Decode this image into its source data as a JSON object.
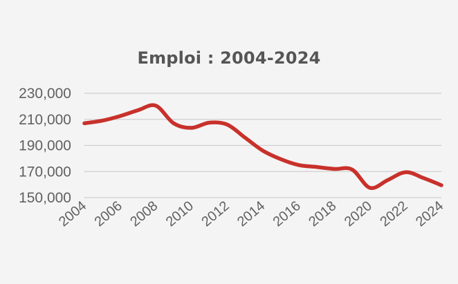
{
  "chart_data": {
    "type": "line",
    "title": "Emploi : 2004-2024",
    "xlabel": "",
    "ylabel": "",
    "x_ticks": [
      "2004",
      "2006",
      "2008",
      "2010",
      "2012",
      "2014",
      "2016",
      "2018",
      "2020",
      "2022",
      "2024"
    ],
    "y_ticks": [
      "150,000",
      "170,000",
      "190,000",
      "210,000",
      "230,000"
    ],
    "xlim": [
      2004,
      2024
    ],
    "ylim": [
      150000,
      230000
    ],
    "grid": true,
    "legend": "none",
    "series": [
      {
        "color": "#c8312b",
        "x": [
          2004,
          2005,
          2006,
          2007,
          2008,
          2009,
          2010,
          2011,
          2012,
          2013,
          2014,
          2015,
          2016,
          2017,
          2018,
          2019,
          2020,
          2021,
          2022,
          2023,
          2024
        ],
        "y": [
          207000,
          209000,
          212500,
          217000,
          220500,
          207000,
          203500,
          207500,
          206000,
          196000,
          186000,
          179500,
          175000,
          173500,
          172000,
          171500,
          157500,
          163500,
          169500,
          165000,
          159500
        ]
      }
    ]
  }
}
